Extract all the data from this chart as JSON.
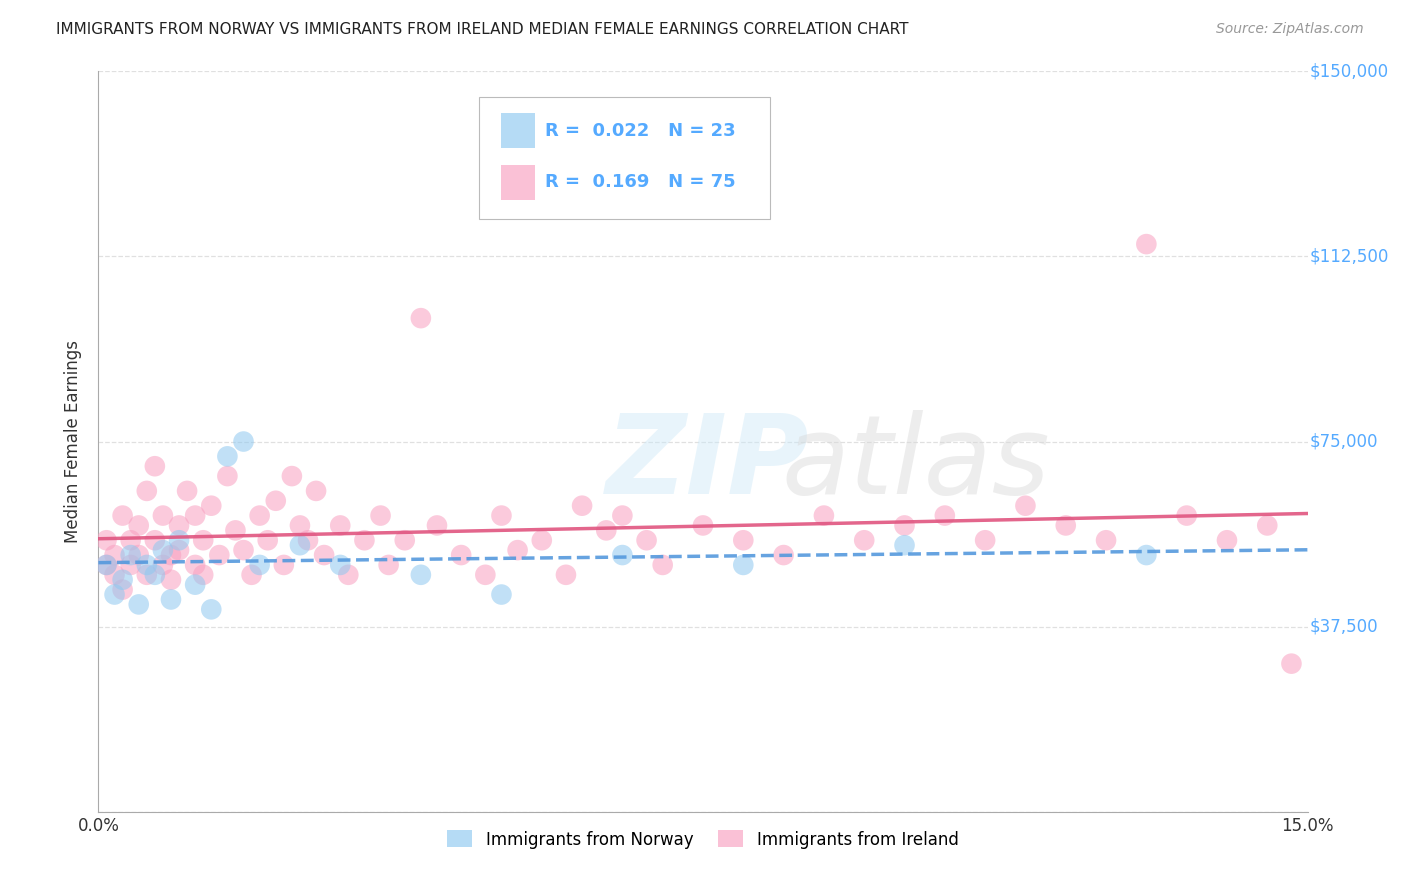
{
  "title": "IMMIGRANTS FROM NORWAY VS IMMIGRANTS FROM IRELAND MEDIAN FEMALE EARNINGS CORRELATION CHART",
  "source": "Source: ZipAtlas.com",
  "ylabel": "Median Female Earnings",
  "xlim": [
    0,
    0.15
  ],
  "ylim": [
    0,
    150000
  ],
  "yticks": [
    0,
    37500,
    75000,
    112500,
    150000
  ],
  "xticks": [
    0,
    0.025,
    0.05,
    0.075,
    0.1,
    0.125,
    0.15
  ],
  "norway_R": 0.022,
  "norway_N": 23,
  "ireland_R": 0.169,
  "ireland_N": 75,
  "norway_color": "#8ec8f0",
  "ireland_color": "#f8a0c0",
  "norway_line_color": "#5599dd",
  "ireland_line_color": "#e05580",
  "background_color": "#ffffff",
  "grid_color": "#dddddd",
  "norway_x": [
    0.001,
    0.002,
    0.003,
    0.004,
    0.005,
    0.006,
    0.007,
    0.008,
    0.009,
    0.01,
    0.012,
    0.014,
    0.016,
    0.018,
    0.02,
    0.025,
    0.03,
    0.04,
    0.05,
    0.065,
    0.08,
    0.1,
    0.13
  ],
  "norway_y": [
    50000,
    44000,
    47000,
    52000,
    42000,
    50000,
    48000,
    53000,
    43000,
    55000,
    46000,
    41000,
    72000,
    75000,
    50000,
    54000,
    50000,
    48000,
    44000,
    52000,
    50000,
    54000,
    52000
  ],
  "ireland_x": [
    0.001,
    0.001,
    0.002,
    0.002,
    0.003,
    0.003,
    0.004,
    0.004,
    0.005,
    0.005,
    0.006,
    0.006,
    0.007,
    0.007,
    0.008,
    0.008,
    0.009,
    0.009,
    0.01,
    0.01,
    0.011,
    0.012,
    0.012,
    0.013,
    0.013,
    0.014,
    0.015,
    0.016,
    0.017,
    0.018,
    0.019,
    0.02,
    0.021,
    0.022,
    0.023,
    0.024,
    0.025,
    0.026,
    0.027,
    0.028,
    0.03,
    0.031,
    0.033,
    0.035,
    0.036,
    0.038,
    0.04,
    0.042,
    0.045,
    0.048,
    0.05,
    0.052,
    0.055,
    0.058,
    0.06,
    0.063,
    0.065,
    0.068,
    0.07,
    0.075,
    0.08,
    0.085,
    0.09,
    0.095,
    0.1,
    0.105,
    0.11,
    0.115,
    0.12,
    0.125,
    0.13,
    0.135,
    0.14,
    0.145,
    0.148
  ],
  "ireland_y": [
    50000,
    55000,
    48000,
    52000,
    60000,
    45000,
    55000,
    50000,
    58000,
    52000,
    65000,
    48000,
    70000,
    55000,
    60000,
    50000,
    52000,
    47000,
    58000,
    53000,
    65000,
    60000,
    50000,
    55000,
    48000,
    62000,
    52000,
    68000,
    57000,
    53000,
    48000,
    60000,
    55000,
    63000,
    50000,
    68000,
    58000,
    55000,
    65000,
    52000,
    58000,
    48000,
    55000,
    60000,
    50000,
    55000,
    100000,
    58000,
    52000,
    48000,
    60000,
    53000,
    55000,
    48000,
    62000,
    57000,
    60000,
    55000,
    50000,
    58000,
    55000,
    52000,
    60000,
    55000,
    58000,
    60000,
    55000,
    62000,
    58000,
    55000,
    115000,
    60000,
    55000,
    58000,
    30000
  ],
  "title_fontsize": 11,
  "axis_tick_color": "#55aaff",
  "legend_fontsize": 13
}
